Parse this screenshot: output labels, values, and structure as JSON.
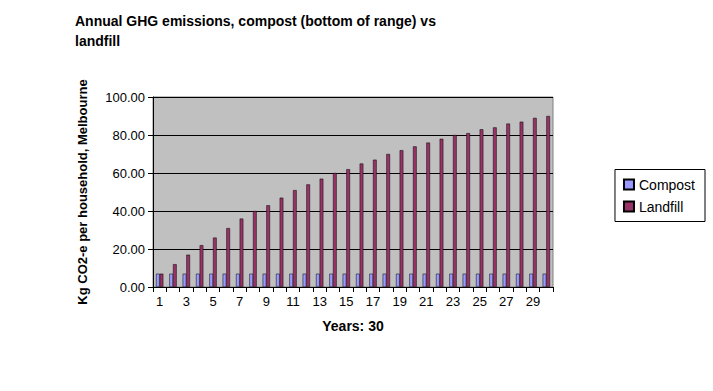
{
  "chart_data": {
    "type": "bar",
    "title": "Annual GHG emissions, compost (bottom of range) vs landfill",
    "x_label": "Years: 30",
    "y_label": "Kg CO2-e per household, Melbourne",
    "categories": [
      "1",
      null,
      "3",
      null,
      "5",
      null,
      "7",
      null,
      "9",
      null,
      "11",
      null,
      "13",
      null,
      "15",
      null,
      "17",
      null,
      "19",
      null,
      "21",
      null,
      "23",
      null,
      "25",
      null,
      "27",
      null,
      "29",
      null
    ],
    "series": [
      {
        "name": "Compost",
        "color": "#9999ff",
        "values": [
          7,
          7,
          7,
          7,
          7,
          7,
          7,
          7,
          7,
          7,
          7,
          7,
          7,
          7,
          7,
          7,
          7,
          7,
          7,
          7,
          7,
          7,
          7,
          7,
          7,
          7,
          7,
          7,
          7,
          7
        ]
      },
      {
        "name": "Landfill",
        "color": "#993366",
        "values": [
          7,
          12,
          17,
          22,
          26,
          31,
          36,
          40,
          43,
          47,
          51,
          54,
          57,
          60,
          62,
          65,
          67,
          70,
          72,
          74,
          76,
          78,
          80,
          81,
          83,
          84,
          86,
          87,
          89,
          90
        ]
      }
    ],
    "ylim": [
      0,
      100
    ],
    "yticks": [
      {
        "value": 0,
        "label": "0.00"
      },
      {
        "value": 20,
        "label": "20.00"
      },
      {
        "value": 40,
        "label": "40.00"
      },
      {
        "value": 60,
        "label": "60.00"
      },
      {
        "value": 80,
        "label": "80.00"
      },
      {
        "value": 100,
        "label": "100.00"
      }
    ],
    "grid": true,
    "legend": "right"
  }
}
